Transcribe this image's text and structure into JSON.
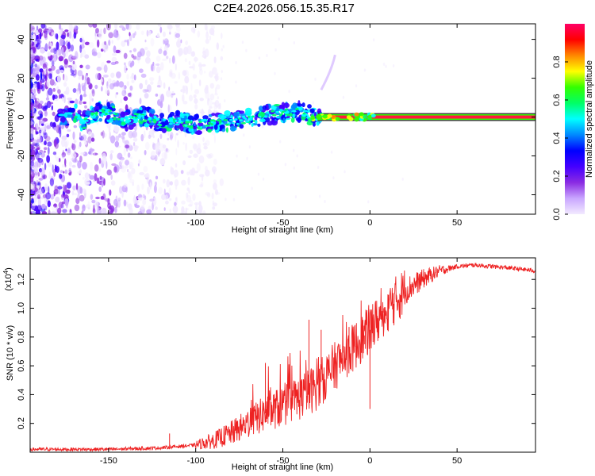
{
  "title": "C2E4.2026.056.15.35.R17",
  "chart_data": [
    {
      "type": "heatmap",
      "name": "spectrogram",
      "xlabel": "Height of straight line (km)",
      "ylabel": "Frequency (Hz)",
      "xlim": [
        -195,
        95
      ],
      "ylim": [
        -50,
        48
      ],
      "xticks": [
        -150,
        -100,
        -50,
        0,
        50
      ],
      "yticks": [
        -40,
        -20,
        0,
        20,
        40
      ],
      "ridge": [
        {
          "x": -172,
          "y": 5
        },
        {
          "x": -165,
          "y": -3
        },
        {
          "x": -155,
          "y": 3
        },
        {
          "x": -148,
          "y": 2
        },
        {
          "x": -140,
          "y": -2
        },
        {
          "x": -130,
          "y": 1
        },
        {
          "x": -120,
          "y": -3
        },
        {
          "x": -110,
          "y": -2
        },
        {
          "x": -100,
          "y": -4
        },
        {
          "x": -90,
          "y": -3
        },
        {
          "x": -80,
          "y": -2
        },
        {
          "x": -70,
          "y": -1
        },
        {
          "x": -60,
          "y": 1
        },
        {
          "x": -50,
          "y": 2
        },
        {
          "x": -40,
          "y": 3
        },
        {
          "x": -30,
          "y": 0
        },
        {
          "x": -20,
          "y": 1
        },
        {
          "x": -10,
          "y": -1
        },
        {
          "x": 0,
          "y": 1
        },
        {
          "x": 95,
          "y": 0
        }
      ],
      "steady_line": {
        "x_start": -30,
        "x_end": 95,
        "y": 0
      },
      "colorbar": {
        "label": "Normalized spectral amplitude",
        "range": [
          0,
          1
        ],
        "ticks": [
          "0.0",
          "0.2",
          "0.4",
          "0.6",
          "0.8"
        ],
        "colors": [
          "#f2eaff",
          "#c9a6ff",
          "#8a2be2",
          "#4400ff",
          "#0000ff",
          "#0088ff",
          "#00ffff",
          "#00ff66",
          "#33ff00",
          "#ffff00",
          "#ff8800",
          "#ff0000",
          "#ff0066"
        ]
      }
    },
    {
      "type": "line",
      "name": "snr",
      "xlabel": "Height of straight line (km)",
      "ylabel": "SNR (10 * v/v)",
      "y_scale_label": "(x10",
      "y_scale_exp": "4",
      "y_scale_close": ")",
      "xlim": [
        -195,
        95
      ],
      "ylim": [
        0,
        1.35
      ],
      "xticks": [
        -150,
        -100,
        -50,
        0,
        50
      ],
      "yticks": [
        "0.2",
        "0.4",
        "0.6",
        "0.8",
        "1.0",
        "1.2"
      ],
      "color": "#ee2222",
      "envelope": [
        [
          -195,
          0.02
        ],
        [
          -150,
          0.02
        ],
        [
          -120,
          0.03
        ],
        [
          -100,
          0.05
        ],
        [
          -90,
          0.08
        ],
        [
          -80,
          0.13
        ],
        [
          -70,
          0.2
        ],
        [
          -60,
          0.27
        ],
        [
          -50,
          0.32
        ],
        [
          -40,
          0.38
        ],
        [
          -30,
          0.46
        ],
        [
          -20,
          0.6
        ],
        [
          -10,
          0.72
        ],
        [
          0,
          0.85
        ],
        [
          10,
          1.0
        ],
        [
          20,
          1.12
        ],
        [
          30,
          1.2
        ],
        [
          40,
          1.26
        ],
        [
          50,
          1.29
        ],
        [
          60,
          1.3
        ],
        [
          70,
          1.29
        ],
        [
          80,
          1.28
        ],
        [
          95,
          1.26
        ]
      ],
      "spikes": [
        [
          -115,
          0.13
        ],
        [
          -60,
          0.62
        ],
        [
          -40,
          0.6
        ],
        [
          -35,
          0.92
        ],
        [
          -28,
          0.85
        ],
        [
          -12,
          0.87
        ],
        [
          -3,
          0.75
        ],
        [
          0,
          0.3
        ],
        [
          8,
          1.0
        ],
        [
          15,
          1.1
        ]
      ]
    }
  ]
}
